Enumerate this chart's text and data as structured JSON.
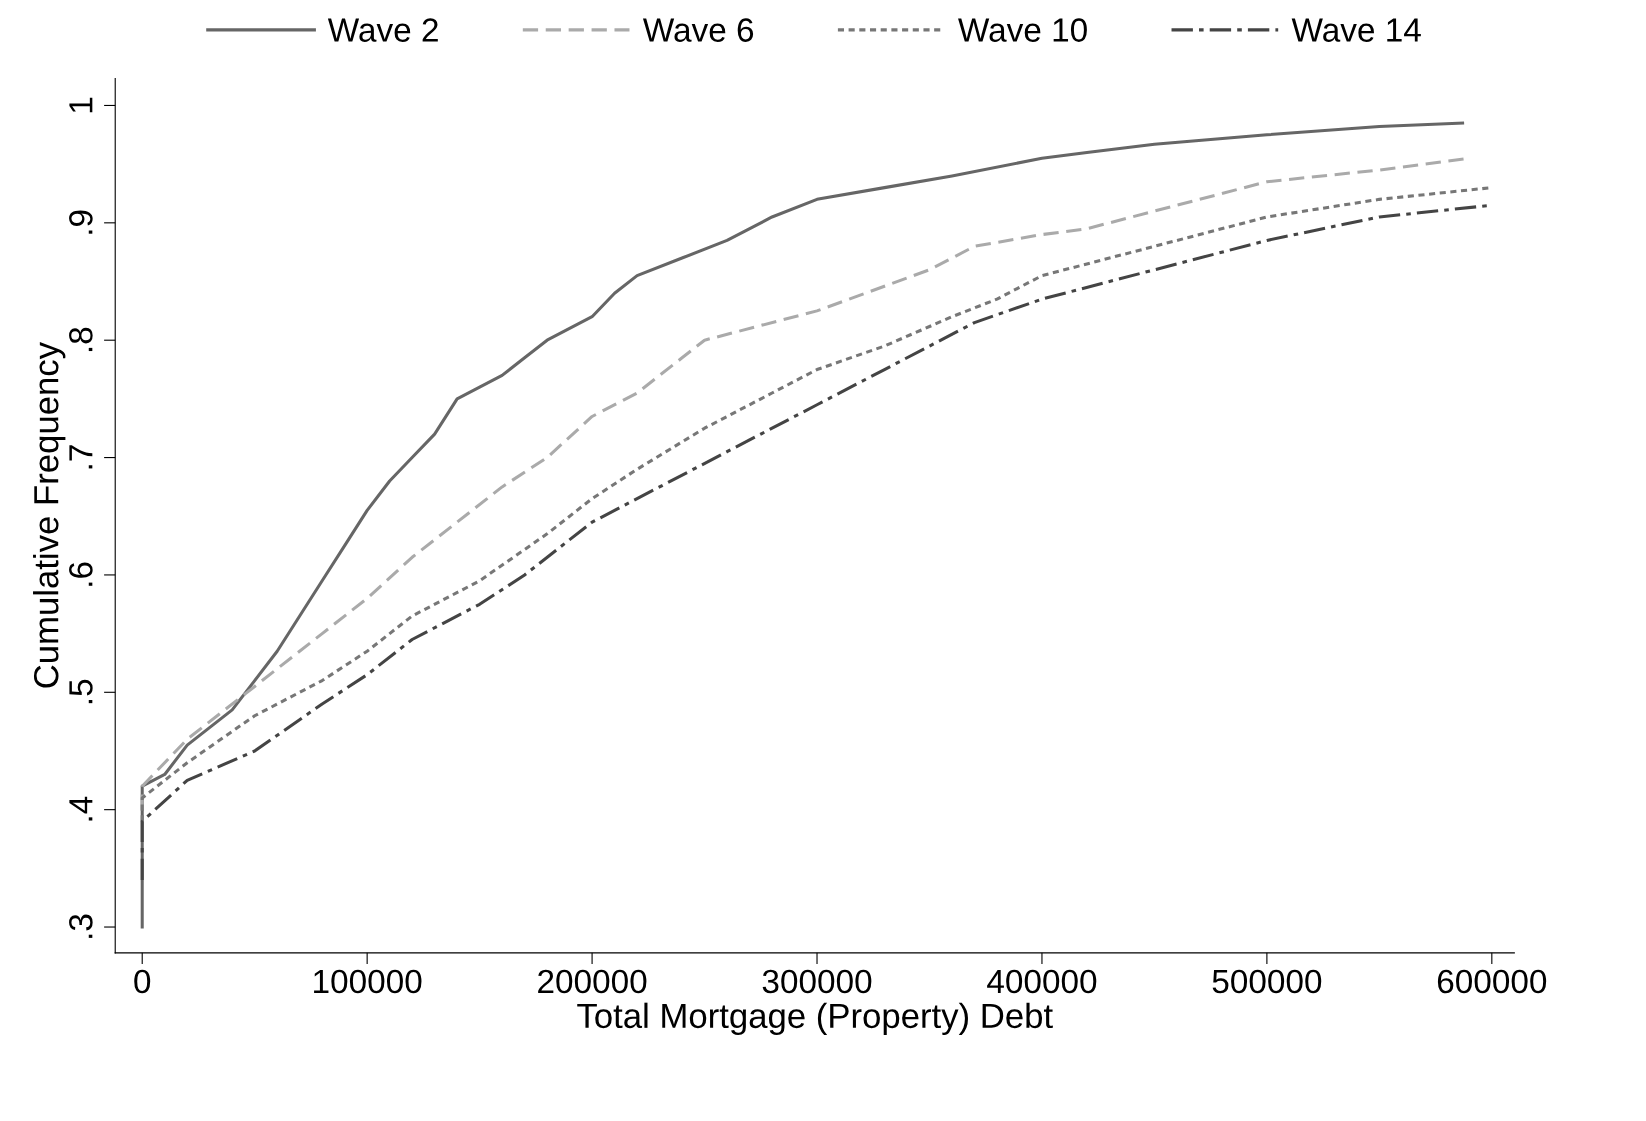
{
  "chart_data": {
    "type": "line",
    "xlabel": "Total Mortgage (Property) Debt",
    "ylabel": "Cumulative Frequency",
    "xlim": [
      -12000,
      610000
    ],
    "ylim": [
      0.278,
      1.023
    ],
    "xticks": [
      0,
      100000,
      200000,
      300000,
      400000,
      500000,
      600000
    ],
    "yticks": [
      {
        "value": 0.3,
        "label": ".3"
      },
      {
        "value": 0.4,
        "label": ".4"
      },
      {
        "value": 0.5,
        "label": ".5"
      },
      {
        "value": 0.6,
        "label": ".6"
      },
      {
        "value": 0.7,
        "label": ".7"
      },
      {
        "value": 0.8,
        "label": ".8"
      },
      {
        "value": 0.9,
        "label": ".9"
      },
      {
        "value": 1,
        "label": "1"
      }
    ],
    "grid": false,
    "legend": "top",
    "marker": "none",
    "series": [
      {
        "name": "Wave 2",
        "color": "#666666",
        "line_style": "solid",
        "x": [
          0,
          0,
          10000,
          20000,
          40000,
          50000,
          60000,
          70000,
          80000,
          90000,
          100000,
          110000,
          120000,
          130000,
          140000,
          150000,
          160000,
          170000,
          180000,
          200000,
          210000,
          220000,
          240000,
          260000,
          280000,
          300000,
          330000,
          360000,
          400000,
          420000,
          450000,
          500000,
          550000,
          587000
        ],
        "values": [
          0.3,
          0.42,
          0.43,
          0.455,
          0.485,
          0.51,
          0.535,
          0.565,
          0.595,
          0.625,
          0.655,
          0.68,
          0.7,
          0.72,
          0.75,
          0.76,
          0.77,
          0.785,
          0.8,
          0.82,
          0.84,
          0.855,
          0.87,
          0.885,
          0.905,
          0.92,
          0.93,
          0.94,
          0.955,
          0.96,
          0.967,
          0.975,
          0.982,
          0.985
        ]
      },
      {
        "name": "Wave 6",
        "color": "#aaaaaa",
        "line_style": "dashed",
        "x": [
          0,
          0,
          20000,
          50000,
          80000,
          100000,
          120000,
          140000,
          160000,
          180000,
          200000,
          220000,
          240000,
          250000,
          300000,
          350000,
          370000,
          400000,
          420000,
          450000,
          500000,
          550000,
          590000
        ],
        "values": [
          0.4,
          0.42,
          0.46,
          0.505,
          0.55,
          0.58,
          0.615,
          0.645,
          0.675,
          0.7,
          0.735,
          0.755,
          0.785,
          0.8,
          0.825,
          0.86,
          0.88,
          0.89,
          0.895,
          0.91,
          0.935,
          0.945,
          0.955
        ]
      },
      {
        "name": "Wave 10",
        "color": "#777777",
        "line_style": "dotted",
        "x": [
          0,
          0,
          20000,
          50000,
          80000,
          100000,
          120000,
          150000,
          180000,
          200000,
          220000,
          250000,
          280000,
          300000,
          330000,
          360000,
          380000,
          400000,
          430000,
          460000,
          500000,
          550000,
          600000
        ],
        "values": [
          0.39,
          0.41,
          0.44,
          0.48,
          0.51,
          0.535,
          0.565,
          0.595,
          0.635,
          0.665,
          0.69,
          0.725,
          0.755,
          0.775,
          0.795,
          0.82,
          0.835,
          0.855,
          0.87,
          0.885,
          0.905,
          0.92,
          0.93
        ]
      },
      {
        "name": "Wave 14",
        "color": "#444444",
        "line_style": "dashdot",
        "x": [
          0,
          0,
          20000,
          50000,
          80000,
          100000,
          120000,
          150000,
          170000,
          200000,
          230000,
          260000,
          300000,
          330000,
          370000,
          400000,
          430000,
          460000,
          500000,
          550000,
          600000
        ],
        "values": [
          0.34,
          0.39,
          0.425,
          0.45,
          0.49,
          0.515,
          0.545,
          0.575,
          0.6,
          0.645,
          0.675,
          0.705,
          0.745,
          0.775,
          0.815,
          0.835,
          0.85,
          0.865,
          0.885,
          0.905,
          0.915
        ]
      }
    ]
  }
}
